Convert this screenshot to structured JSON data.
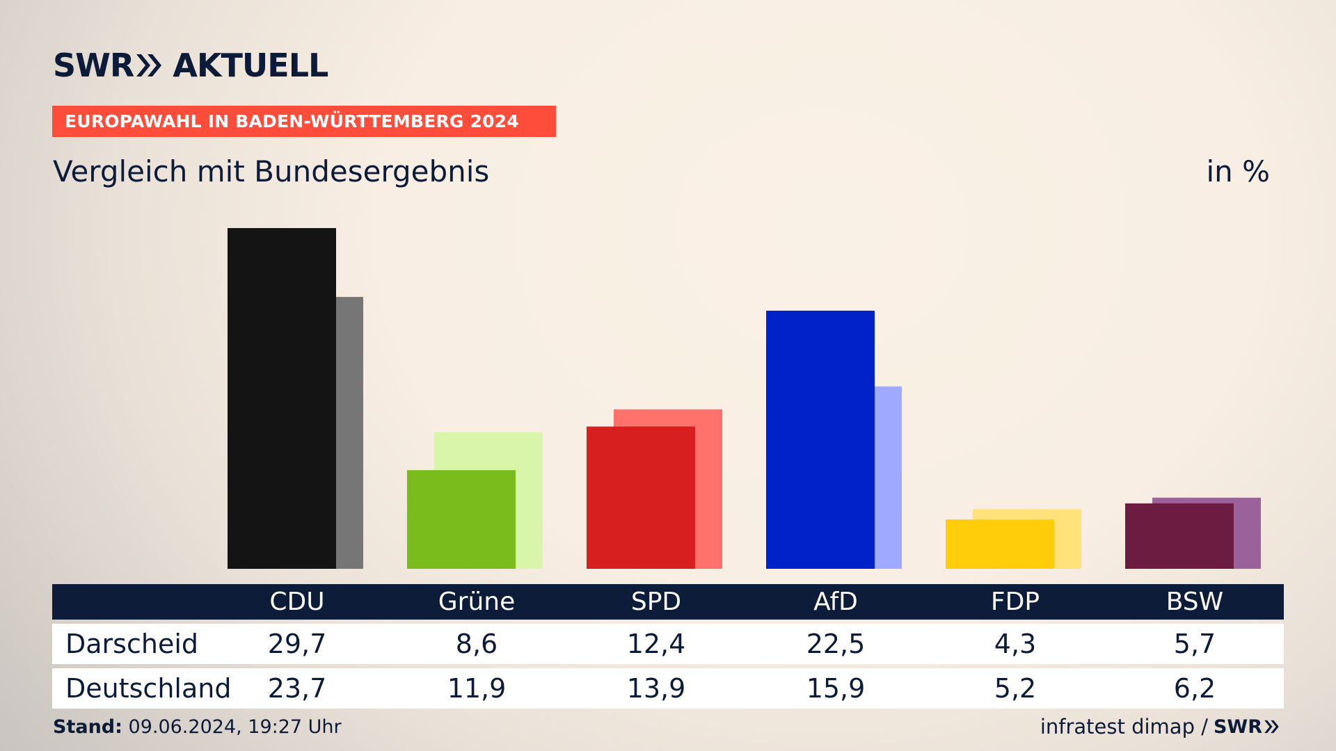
{
  "brand": {
    "logo_left": "SWR",
    "logo_right": "AKTUELL",
    "footer_logo": "SWR"
  },
  "banner": "EUROPAWAHL IN BADEN-WÜRTTEMBERG 2024",
  "subtitle": "Vergleich mit Bundesergebnis",
  "unit": "in %",
  "table": {
    "rows": [
      {
        "label": "Darscheid",
        "values": [
          "29,7",
          "8,6",
          "12,4",
          "22,5",
          "4,3",
          "5,7"
        ]
      },
      {
        "label": "Deutschland",
        "values": [
          "23,7",
          "11,9",
          "13,9",
          "15,9",
          "5,2",
          "6,2"
        ]
      }
    ]
  },
  "footer": {
    "stand_label": "Stand:",
    "stand_value": "09.06.2024, 19:27 Uhr",
    "source": "infratest dimap /"
  },
  "chart_data": {
    "type": "bar",
    "categories": [
      "CDU",
      "Grüne",
      "SPD",
      "AfD",
      "FDP",
      "BSW"
    ],
    "series": [
      {
        "name": "Darscheid",
        "values": [
          29.7,
          8.6,
          12.4,
          22.5,
          4.3,
          5.7
        ]
      },
      {
        "name": "Deutschland",
        "values": [
          23.7,
          11.9,
          13.9,
          15.9,
          5.2,
          6.2
        ]
      }
    ],
    "colors": {
      "local": [
        "#141414",
        "#79bc1b",
        "#d71f1f",
        "#0022c8",
        "#ffcd0a",
        "#6c1b41"
      ],
      "national": [
        "#767676",
        "#d9f5a9",
        "#ff726b",
        "#9ea9ff",
        "#ffe27a",
        "#9a619a"
      ]
    },
    "ylim": [
      0,
      29.7
    ],
    "grid": false
  }
}
